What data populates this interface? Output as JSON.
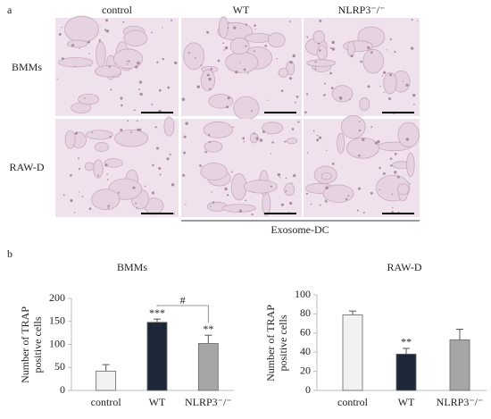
{
  "panel_a": {
    "label": "a",
    "columns": [
      "control",
      "WT",
      "NLRP3⁻/⁻"
    ],
    "rows": [
      "BMMs",
      "RAW-D"
    ],
    "group_label": "Exosome-DC"
  },
  "panel_b_label": "b",
  "chart_data": [
    {
      "type": "bar",
      "title": "BMMs",
      "ylabel": "Number of TRAP positive cells",
      "categories": [
        "control",
        "WT",
        "NLRP3⁻/⁻"
      ],
      "values": [
        42,
        148,
        102
      ],
      "errors": [
        14,
        7,
        18
      ],
      "colors": [
        "#f2f2f2",
        "#1c2838",
        "#a6a6a6"
      ],
      "significance": [
        null,
        "***",
        "**"
      ],
      "brackets": [
        {
          "from": 1,
          "to": 2,
          "label": "#"
        }
      ],
      "ylim": [
        0,
        200
      ],
      "yticks": [
        0,
        50,
        100,
        150,
        200
      ]
    },
    {
      "type": "bar",
      "title": "RAW-D",
      "ylabel": "Number of TRAP positive cells",
      "categories": [
        "control",
        "WT",
        "NLRP3⁻/⁻"
      ],
      "values": [
        79,
        38,
        53
      ],
      "errors": [
        4,
        6,
        11
      ],
      "colors": [
        "#f2f2f2",
        "#1c2838",
        "#a6a6a6"
      ],
      "significance": [
        null,
        "**",
        null
      ],
      "ylim": [
        0,
        100
      ],
      "yticks": [
        0,
        20,
        40,
        60,
        80,
        100
      ]
    }
  ]
}
